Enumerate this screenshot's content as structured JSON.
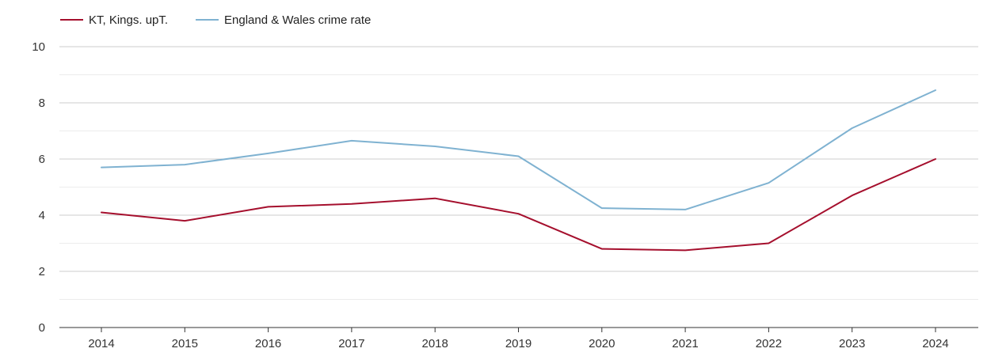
{
  "chart_data": {
    "type": "line",
    "title": "",
    "xlabel": "",
    "ylabel": "",
    "x": [
      "2014",
      "2015",
      "2016",
      "2017",
      "2018",
      "2019",
      "2020",
      "2021",
      "2022",
      "2023",
      "2024"
    ],
    "ylim": [
      0,
      10
    ],
    "y_ticks": [
      "0",
      "2",
      "4",
      "6",
      "8",
      "10"
    ],
    "grid": true,
    "legend_position": "top-left",
    "series": [
      {
        "name": "KT, Kings. upT.",
        "color": "#a50f2d",
        "values": [
          4.1,
          3.8,
          4.3,
          4.4,
          4.6,
          4.05,
          2.8,
          2.75,
          3.0,
          4.7,
          6.0
        ]
      },
      {
        "name": "England & Wales crime rate",
        "color": "#7fb2d1",
        "values": [
          5.7,
          5.8,
          6.2,
          6.65,
          6.45,
          6.1,
          4.25,
          4.2,
          5.15,
          7.1,
          8.45
        ]
      }
    ]
  }
}
